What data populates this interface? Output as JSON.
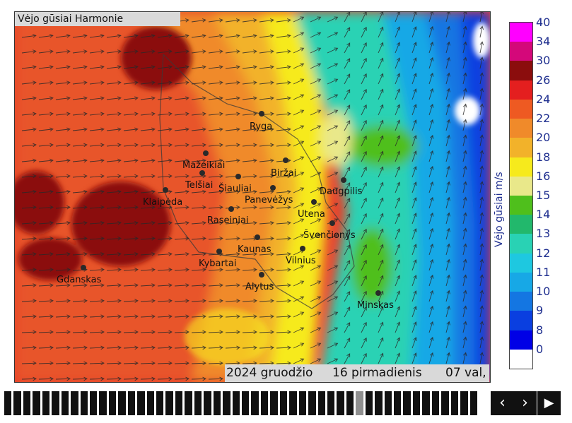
{
  "map": {
    "title": "Vėjo gūsiai Harmonie",
    "cities": [
      {
        "name": "Ryga"
      },
      {
        "name": "Mažeikiai"
      },
      {
        "name": "Biržai"
      },
      {
        "name": "Telšiai"
      },
      {
        "name": "Šiauliai"
      },
      {
        "name": "Daugpilis"
      },
      {
        "name": "Klaipėda"
      },
      {
        "name": "Panevėžys"
      },
      {
        "name": "Utena"
      },
      {
        "name": "Raseiniai"
      },
      {
        "name": "Švenčionys"
      },
      {
        "name": "Kaunas"
      },
      {
        "name": "Vilnius"
      },
      {
        "name": "Kybartai"
      },
      {
        "name": "Alytus"
      },
      {
        "name": "Gdanskas"
      },
      {
        "name": "Minskas"
      }
    ]
  },
  "date_bar": {
    "year_month": "2024 gruodžio",
    "day": "16 pirmadienis",
    "hour": "07 val,"
  },
  "legend": {
    "unit_label": "Vėjo gūsiai m/s",
    "levels": [
      "40",
      "34",
      "30",
      "26",
      "24",
      "22",
      "20",
      "18",
      "16",
      "15",
      "14",
      "13",
      "12",
      "11",
      "10",
      "9",
      "8",
      "0"
    ],
    "colors": [
      "#ff00ff",
      "#d4087a",
      "#8b0d0d",
      "#e41f1f",
      "#ee5a22",
      "#f08a2a",
      "#f2b22a",
      "#f6ea1c",
      "#e9e88a",
      "#4fbf1c",
      "#22b86c",
      "#29d2b4",
      "#1ec8e0",
      "#17a8e6",
      "#1476e2",
      "#0a3fe0",
      "#0000e6",
      "#ffffff"
    ]
  },
  "timeline": {
    "frame_count": 50,
    "active_frame": 37
  },
  "nav": {
    "prev_label": "‹",
    "next_label": "›",
    "play_label": "▶"
  }
}
